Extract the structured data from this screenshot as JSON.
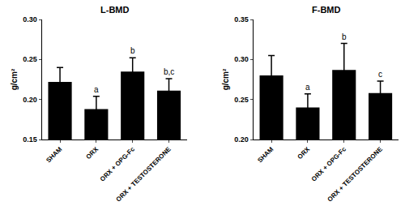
{
  "chart_data": [
    {
      "type": "bar",
      "title": "L-BMD",
      "y_label": "g/cm²",
      "categories": [
        "SHAM",
        "ORX",
        "ORX + OPG-Fc",
        "ORX + TESTOSTERONE"
      ],
      "values": [
        0.222,
        0.188,
        0.235,
        0.211
      ],
      "error": [
        0.018,
        0.016,
        0.017,
        0.015
      ],
      "color": "#000000",
      "ylim": [
        0.15,
        0.3
      ],
      "yticks": [
        0.15,
        {
          "value": 0.2,
          "label": "0.20"
        },
        0.25,
        {
          "value": 0.3,
          "label": "0.30"
        }
      ],
      "grid": false,
      "annotations": [
        {
          "category": "ORX",
          "text": "a"
        },
        {
          "category": "ORX + OPG-Fc",
          "text": "b"
        },
        {
          "category": "ORX + TESTOSTERONE",
          "text": "b,c"
        }
      ]
    },
    {
      "type": "bar",
      "title": "F-BMD",
      "y_label": "g/cm²",
      "categories": [
        "SHAM",
        "ORX",
        "ORX + OPG-Fc",
        "ORX + TESTOSTERONE"
      ],
      "values": [
        0.28,
        0.24,
        0.287,
        0.258
      ],
      "error": [
        0.025,
        0.017,
        0.033,
        0.015
      ],
      "color": "#000000",
      "ylim": [
        0.2,
        0.35
      ],
      "yticks": [
        {
          "value": 0.2,
          "label": "0.20"
        },
        0.25,
        {
          "value": 0.3,
          "label": "0.30"
        },
        0.35
      ],
      "grid": false,
      "annotations": [
        {
          "category": "ORX",
          "text": "a"
        },
        {
          "category": "ORX + OPG-Fc",
          "text": "b"
        },
        {
          "category": "ORX + TESTOSTERONE",
          "text": "c"
        }
      ]
    }
  ]
}
